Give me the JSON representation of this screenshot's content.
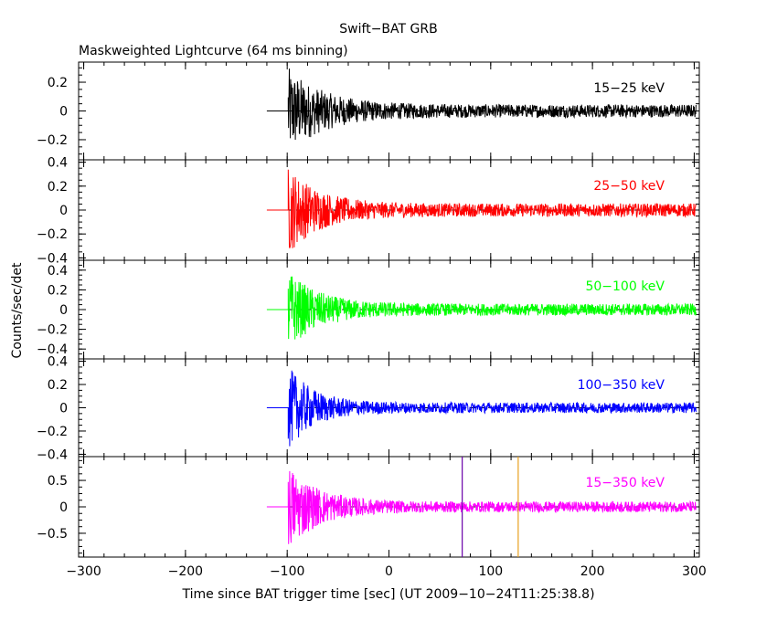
{
  "chart_data": {
    "type": "line",
    "title": "Swift−BAT GRB",
    "subtitle": "Maskweighted Lightcurve (64 ms binning)",
    "xlabel": "Time since BAT trigger time [sec] (UT 2009−10−24T11:25:38.8)",
    "ylabel": "Counts/sec/det",
    "xlim": [
      -305,
      305
    ],
    "x_ticks": [
      -300,
      -200,
      -100,
      0,
      100,
      200,
      300
    ],
    "x_tick_labels": [
      "−300",
      "−200",
      "−100",
      "0",
      "100",
      "200",
      "300"
    ],
    "data_start": -120,
    "burst_onset": -99,
    "data_end": 302,
    "panels": [
      {
        "name": "15–25 keV",
        "label": "15−25 keV",
        "color": "#000000",
        "ylim": [
          -0.34,
          0.34
        ],
        "y_ticks": [
          -0.2,
          0,
          0.2
        ],
        "y_tick_labels": [
          "−0.2",
          "0",
          "0.2"
        ],
        "peak_amp": 0.26,
        "decay_sec": 35,
        "floor_amp": 0.045
      },
      {
        "name": "25–50 keV",
        "label": "25−50 keV",
        "color": "#ff0000",
        "ylim": [
          -0.42,
          0.42
        ],
        "y_ticks": [
          -0.4,
          -0.2,
          0,
          0.2,
          0.4
        ],
        "y_tick_labels": [
          "−0.4",
          "−0.2",
          "0",
          "0.2",
          "0.4"
        ],
        "peak_amp": 0.32,
        "decay_sec": 30,
        "floor_amp": 0.055
      },
      {
        "name": "50–100 keV",
        "label": "50−100 keV",
        "color": "#00ff00",
        "ylim": [
          -0.5,
          0.5
        ],
        "y_ticks": [
          -0.4,
          -0.2,
          0,
          0.2,
          0.4
        ],
        "y_tick_labels": [
          "−0.4",
          "−0.2",
          "0",
          "0.2",
          "0.4"
        ],
        "peak_amp": 0.34,
        "decay_sec": 30,
        "floor_amp": 0.06
      },
      {
        "name": "100–350 keV",
        "label": "100−350 keV",
        "color": "#0000ff",
        "ylim": [
          -0.42,
          0.42
        ],
        "y_ticks": [
          -0.4,
          -0.2,
          0,
          0.2,
          0.4
        ],
        "y_tick_labels": [
          "−0.4",
          "−0.2",
          "0",
          "0.2",
          "0.4"
        ],
        "peak_amp": 0.32,
        "decay_sec": 25,
        "floor_amp": 0.045
      },
      {
        "name": "15–350 keV",
        "label": "15−350 keV",
        "color": "#ff00ff",
        "ylim": [
          -0.95,
          0.95
        ],
        "y_ticks": [
          -0.5,
          0,
          0.5
        ],
        "y_tick_labels": [
          "−0.5",
          "0",
          "0.5"
        ],
        "peak_amp": 0.72,
        "decay_sec": 30,
        "floor_amp": 0.1,
        "markers": [
          {
            "x": 72,
            "color": "#6a00a8"
          },
          {
            "x": 127,
            "color": "#e8a020"
          }
        ]
      }
    ]
  }
}
